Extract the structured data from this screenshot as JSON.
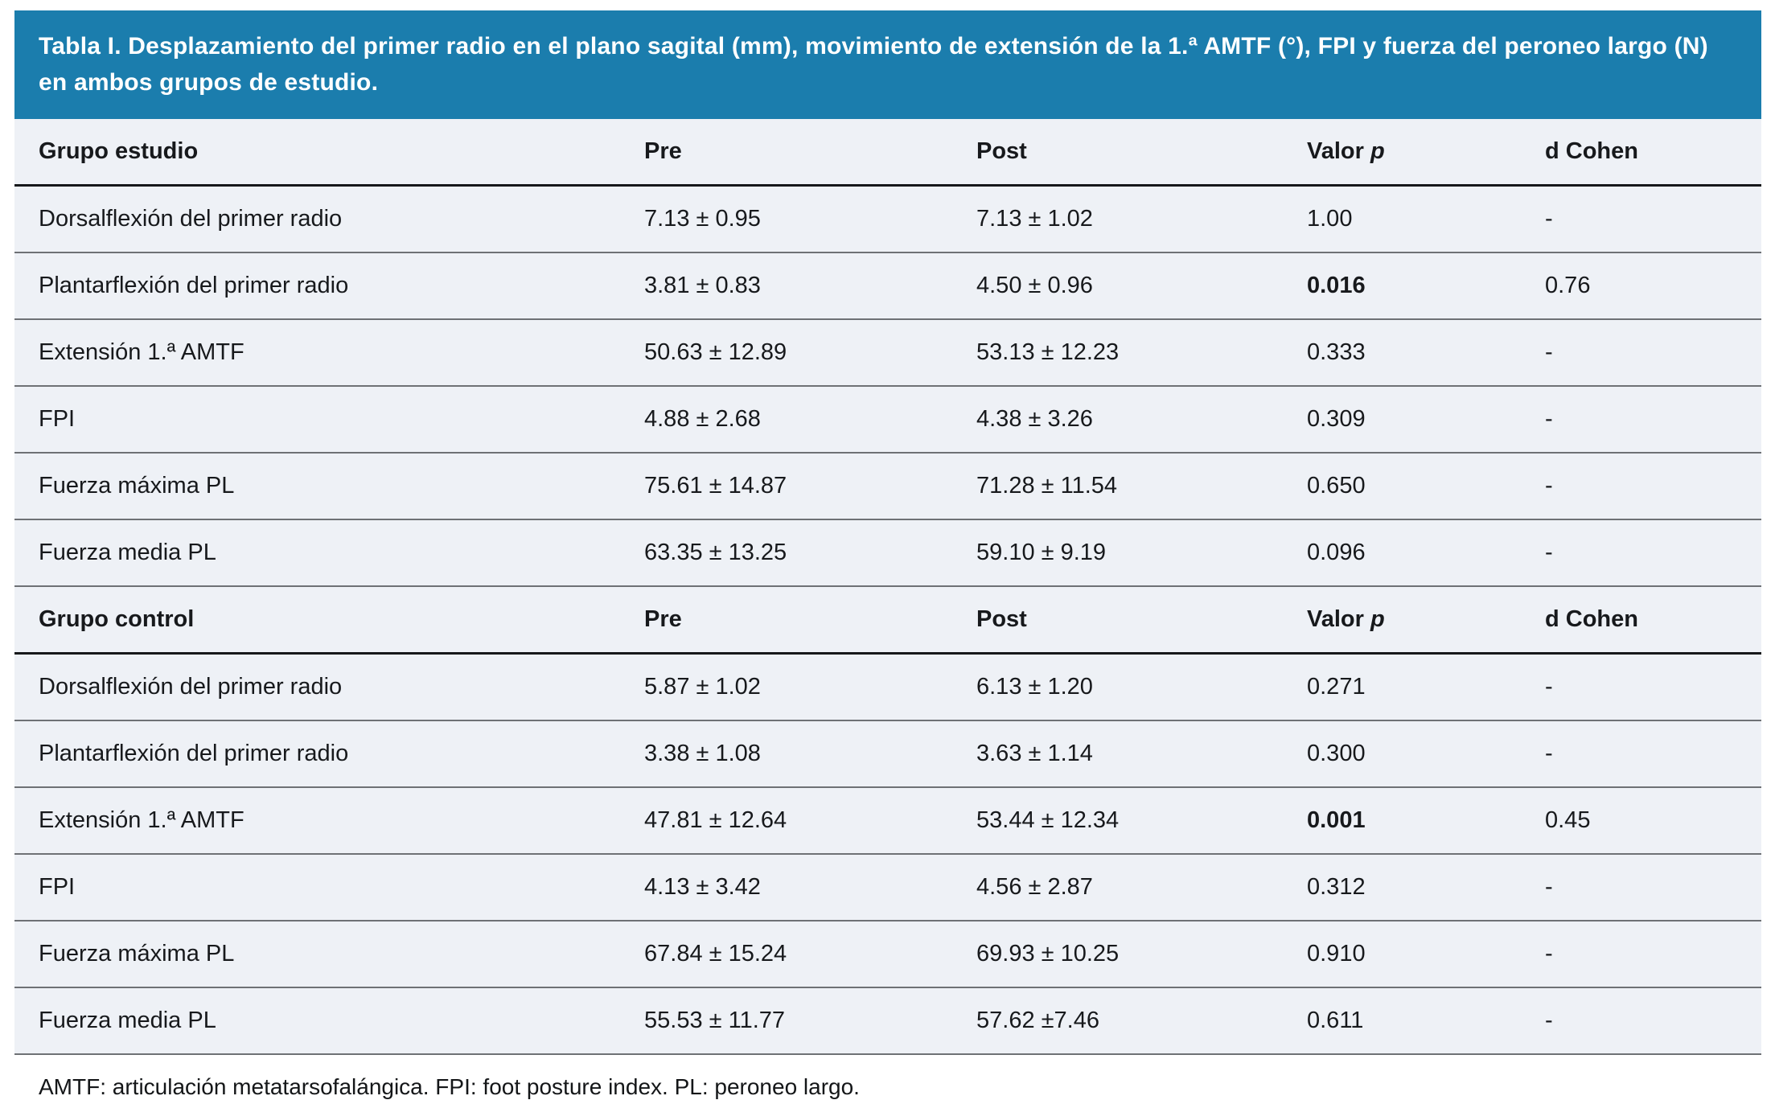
{
  "table": {
    "title": "Tabla I. Desplazamiento del primer radio en el plano sagital (mm), movimiento de extensión de la 1.ª AMTF (°), FPI y fuerza del peroneo largo (N) en ambos grupos de estudio.",
    "columns": {
      "pre": "Pre",
      "post": "Post",
      "valor": "Valor",
      "p_italic": "p",
      "d_cohen": "d Cohen"
    },
    "sections": [
      {
        "group_label": "Grupo estudio",
        "rows": [
          {
            "label": "Dorsalflexión del primer radio",
            "pre": "7.13 ± 0.95",
            "post": "7.13 ± 1.02",
            "p": "1.00",
            "p_bold": false,
            "d": "-"
          },
          {
            "label": "Plantarflexión del primer radio",
            "pre": "3.81 ± 0.83",
            "post": "4.50 ± 0.96",
            "p": "0.016",
            "p_bold": true,
            "d": "0.76"
          },
          {
            "label": "Extensión 1.ª AMTF",
            "pre": "50.63 ± 12.89",
            "post": "53.13 ± 12.23",
            "p": "0.333",
            "p_bold": false,
            "d": "-"
          },
          {
            "label": "FPI",
            "pre": "4.88 ± 2.68",
            "post": "4.38 ± 3.26",
            "p": "0.309",
            "p_bold": false,
            "d": "-"
          },
          {
            "label": "Fuerza máxima PL",
            "pre": "75.61 ± 14.87",
            "post": "71.28 ± 11.54",
            "p": "0.650",
            "p_bold": false,
            "d": "-"
          },
          {
            "label": "Fuerza media PL",
            "pre": "63.35 ± 13.25",
            "post": "59.10 ± 9.19",
            "p": "0.096",
            "p_bold": false,
            "d": "-"
          }
        ]
      },
      {
        "group_label": "Grupo control",
        "rows": [
          {
            "label": "Dorsalflexión del primer radio",
            "pre": "5.87 ± 1.02",
            "post": "6.13 ± 1.20",
            "p": "0.271",
            "p_bold": false,
            "d": "-"
          },
          {
            "label": "Plantarflexión del primer radio",
            "pre": "3.38 ± 1.08",
            "post": "3.63 ± 1.14",
            "p": "0.300",
            "p_bold": false,
            "d": "-"
          },
          {
            "label": "Extensión 1.ª AMTF",
            "pre": "47.81 ± 12.64",
            "post": "53.44 ± 12.34",
            "p": "0.001",
            "p_bold": true,
            "d": "0.45"
          },
          {
            "label": "FPI",
            "pre": "4.13 ± 3.42",
            "post": "4.56 ± 2.87",
            "p": "0.312",
            "p_bold": false,
            "d": "-"
          },
          {
            "label": "Fuerza máxima PL",
            "pre": "67.84 ± 15.24",
            "post": "69.93 ± 10.25",
            "p": "0.910",
            "p_bold": false,
            "d": "-"
          },
          {
            "label": "Fuerza media PL",
            "pre": "55.53 ± 11.77",
            "post": "57.62 ±7.46",
            "p": "0.611",
            "p_bold": false,
            "d": "-"
          }
        ]
      }
    ],
    "footnote": "AMTF: articulación metatarsofalángica. FPI: foot posture index. PL: peroneo largo.",
    "colors": {
      "banner_blue": "#1b7dad",
      "table_background": "#eef1f6",
      "header_rule": "#16181a",
      "row_rule": "#6e7175",
      "text": "#17191c"
    }
  }
}
